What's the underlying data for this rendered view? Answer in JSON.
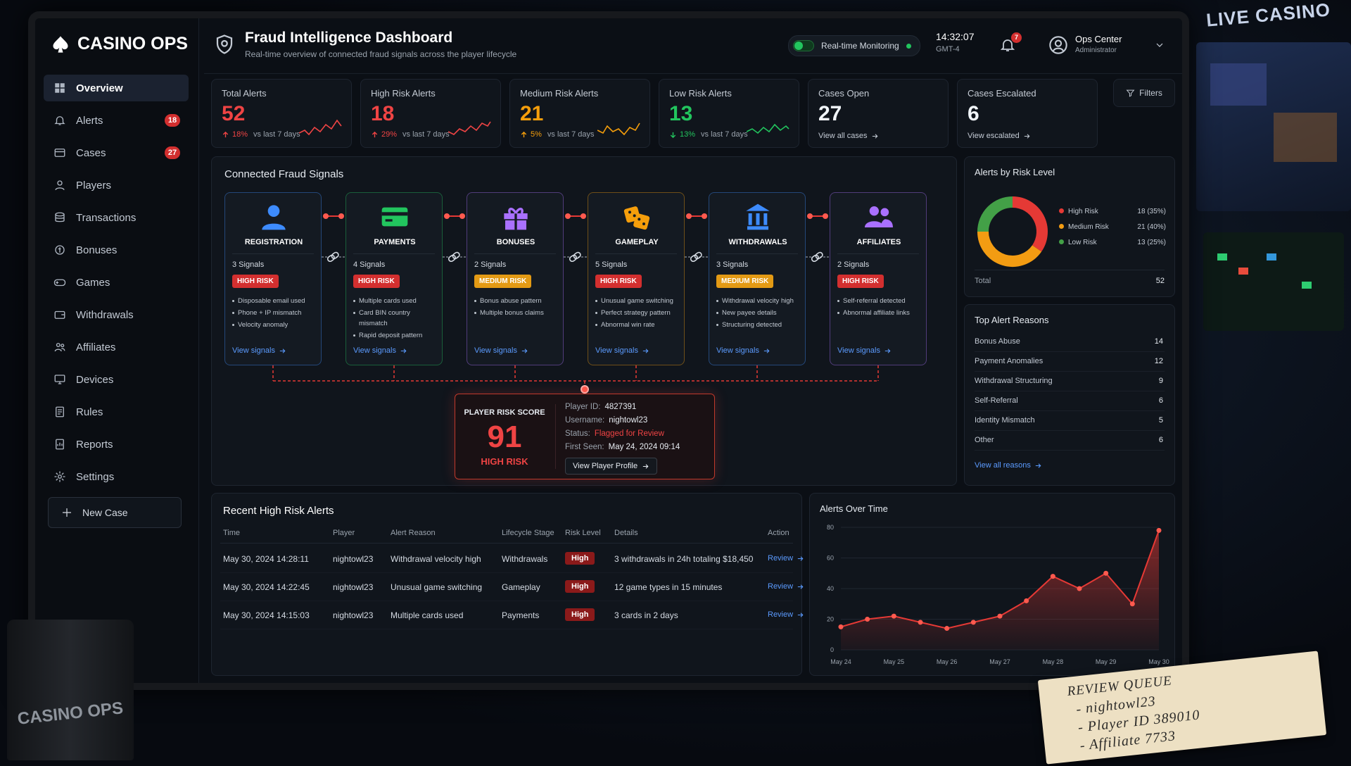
{
  "scene": {
    "sign": "LIVE CASINO",
    "mug": "CASINO OPS",
    "notepad": [
      "REVIEW QUEUE",
      "- nightowl23",
      "- Player ID 389010",
      "- Affiliate 7733"
    ]
  },
  "sidebar": {
    "brand": "CASINO OPS",
    "nav": [
      {
        "label": "Overview"
      },
      {
        "label": "Alerts",
        "badge": 18
      },
      {
        "label": "Cases",
        "badge": 27
      },
      {
        "label": "Players"
      },
      {
        "label": "Transactions"
      },
      {
        "label": "Bonuses"
      },
      {
        "label": "Games"
      },
      {
        "label": "Withdrawals"
      },
      {
        "label": "Affiliates"
      },
      {
        "label": "Devices"
      },
      {
        "label": "Rules"
      },
      {
        "label": "Reports"
      },
      {
        "label": "Settings"
      }
    ],
    "new_case": "New Case"
  },
  "header": {
    "title": "Fraud Intelligence Dashboard",
    "subtitle": "Real-time overview of connected fraud signals across the player lifecycle",
    "monitoring": "Real-time Monitoring",
    "time": "14:32:07",
    "timezone": "GMT-4",
    "notifications": 7,
    "user": "Ops Center",
    "role": "Administrator"
  },
  "kpis": [
    {
      "label": "Total Alerts",
      "value": 52,
      "color": "#ef4444",
      "trend": "up",
      "change": "18%",
      "trend_color": "#ef4444",
      "note": "vs last 7 days"
    },
    {
      "label": "High Risk Alerts",
      "value": 18,
      "color": "#ef4444",
      "trend": "up",
      "change": "29%",
      "trend_color": "#ef4444",
      "note": "vs last 7 days"
    },
    {
      "label": "Medium Risk Alerts",
      "value": 21,
      "color": "#f59e0b",
      "trend": "up",
      "change": "5%",
      "trend_color": "#f59e0b",
      "note": "vs last 7 days"
    },
    {
      "label": "Low Risk Alerts",
      "value": 13,
      "color": "#22c55e",
      "trend": "down",
      "change": "13%",
      "trend_color": "#22c55e",
      "note": "vs last 7 days"
    },
    {
      "label": "Cases Open",
      "value": 27,
      "color": "#f1f5f9",
      "link": "View all cases"
    },
    {
      "label": "Cases Escalated",
      "value": 6,
      "color": "#f1f5f9",
      "link": "View escalated"
    }
  ],
  "filters": "Filters",
  "signals": {
    "title": "Connected Fraud Signals",
    "stages": [
      {
        "name": "REGISTRATION",
        "color": "#3d8bfd",
        "signals": "3 Signals",
        "risk": "HIGH RISK",
        "risk_color": "#d32f2f",
        "items": [
          "Disposable email used",
          "Phone + IP mismatch",
          "Velocity anomaly"
        ],
        "link": "View signals"
      },
      {
        "name": "PAYMENTS",
        "color": "#22c55e",
        "signals": "4 Signals",
        "risk": "HIGH RISK",
        "risk_color": "#d32f2f",
        "items": [
          "Multiple cards used",
          "Card BIN country mismatch",
          "Rapid deposit pattern"
        ],
        "link": "View signals"
      },
      {
        "name": "BONUSES",
        "color": "#a970ff",
        "signals": "2 Signals",
        "risk": "MEDIUM RISK",
        "risk_color": "#e39a14",
        "items": [
          "Bonus abuse pattern",
          "Multiple bonus claims"
        ],
        "link": "View signals"
      },
      {
        "name": "GAMEPLAY",
        "color": "#f59e0b",
        "signals": "5 Signals",
        "risk": "HIGH RISK",
        "risk_color": "#d32f2f",
        "items": [
          "Unusual game switching",
          "Perfect strategy pattern",
          "Abnormal win rate"
        ],
        "link": "View signals"
      },
      {
        "name": "WITHDRAWALS",
        "color": "#3d8bfd",
        "signals": "3 Signals",
        "risk": "MEDIUM RISK",
        "risk_color": "#e39a14",
        "items": [
          "Withdrawal velocity high",
          "New payee details",
          "Structuring detected"
        ],
        "link": "View signals"
      },
      {
        "name": "AFFILIATES",
        "color": "#a970ff",
        "signals": "2 Signals",
        "risk": "HIGH RISK",
        "risk_color": "#d32f2f",
        "items": [
          "Self-referral detected",
          "Abnormal affiliate links"
        ],
        "link": "View signals"
      }
    ]
  },
  "player": {
    "label": "PLAYER RISK SCORE",
    "score": 91,
    "risk": "HIGH RISK",
    "fields": [
      {
        "label": "Player ID:",
        "value": "4827391"
      },
      {
        "label": "Username:",
        "value": "nightowl23"
      },
      {
        "label": "Status:",
        "value": "Flagged for Review"
      },
      {
        "label": "First Seen:",
        "value": "May 24, 2024 09:14"
      }
    ],
    "link": "View Player Profile"
  },
  "chart_data": [
    {
      "type": "pie",
      "title": "Alerts by Risk Level",
      "categories": [
        "High Risk",
        "Medium Risk",
        "Low Risk"
      ],
      "values": [
        18,
        21,
        13
      ],
      "value_labels": [
        "18 (35%)",
        "21 (40%)",
        "13 (25%)"
      ],
      "colors": [
        "#e53935",
        "#f39c12",
        "#43a047"
      ],
      "total_label": "Total",
      "total": 52
    },
    {
      "type": "line",
      "title": "Alerts Over Time",
      "x": [
        "May 24",
        null,
        "May 25",
        null,
        "May 26",
        null,
        "May 27",
        null,
        "May 28",
        null,
        "May 29",
        null,
        "May 30"
      ],
      "series": [
        {
          "name": null,
          "color": "#e53935",
          "values": [
            15,
            20,
            22,
            18,
            14,
            18,
            22,
            32,
            48,
            40,
            50,
            30,
            78
          ]
        }
      ],
      "ylim": [
        0,
        80
      ],
      "yticks": [
        0,
        20,
        40,
        60,
        80
      ],
      "grid": true
    }
  ],
  "reasons": {
    "title": "Top Alert Reasons",
    "rows": [
      {
        "label": "Bonus Abuse",
        "count": 14
      },
      {
        "label": "Payment Anomalies",
        "count": 12
      },
      {
        "label": "Withdrawal Structuring",
        "count": 9
      },
      {
        "label": "Self-Referral",
        "count": 6
      },
      {
        "label": "Identity Mismatch",
        "count": 5
      },
      {
        "label": "Other",
        "count": 6
      }
    ],
    "link": "View all reasons"
  },
  "table": {
    "title": "Recent High Risk Alerts",
    "headers": [
      "Time",
      "Player",
      "Alert Reason",
      "Lifecycle Stage",
      "Risk Level",
      "Details",
      "Action"
    ],
    "rows": [
      [
        "May 30, 2024 14:28:11",
        "nightowl23",
        "Withdrawal velocity high",
        "Withdrawals",
        "High",
        "3 withdrawals in 24h totaling $18,450",
        "Review"
      ],
      [
        "May 30, 2024 14:22:45",
        "nightowl23",
        "Unusual game switching",
        "Gameplay",
        "High",
        "12 game types in 15 minutes",
        "Review"
      ],
      [
        "May 30, 2024 14:15:03",
        "nightowl23",
        "Multiple cards used",
        "Payments",
        "High",
        "3 cards in 2 days",
        "Review"
      ]
    ]
  }
}
